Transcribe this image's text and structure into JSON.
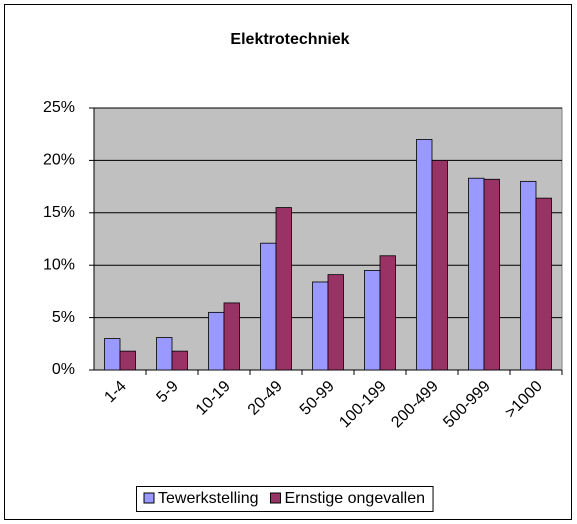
{
  "chart_data": {
    "type": "bar",
    "title": "Elektrotechniek",
    "categories": [
      "1-4",
      "5-9",
      "10-19",
      "20-49",
      "50-99",
      "100-199",
      "200-499",
      "500-999",
      ">1000"
    ],
    "series": [
      {
        "name": "Tewerkstelling",
        "color": "#9999ff",
        "values": [
          3.0,
          3.1,
          5.5,
          12.1,
          8.4,
          9.5,
          22.0,
          18.3,
          18.0
        ]
      },
      {
        "name": "Ernstige ongevallen",
        "color": "#993366",
        "values": [
          1.8,
          1.8,
          6.4,
          15.5,
          9.1,
          10.9,
          20.0,
          18.2,
          16.4
        ]
      }
    ],
    "ylim": [
      0,
      25
    ],
    "yticks": [
      {
        "value": 0,
        "label": "0%"
      },
      {
        "value": 5,
        "label": "5%"
      },
      {
        "value": 10,
        "label": "10%"
      },
      {
        "value": 15,
        "label": "15%"
      },
      {
        "value": 20,
        "label": "20%"
      },
      {
        "value": 25,
        "label": "25%"
      }
    ],
    "grid": true,
    "legend": "bottom"
  }
}
